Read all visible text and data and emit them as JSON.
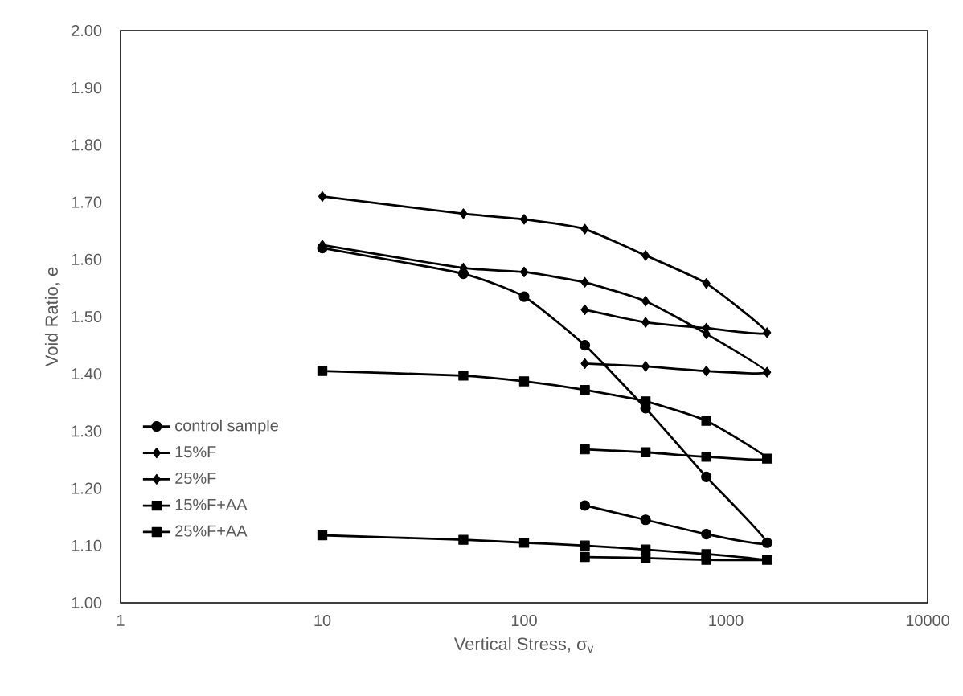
{
  "chart_data": {
    "type": "line",
    "xlabel": "Vertical Stress, σ$_{v}$",
    "ylabel": "Void Ratio, e",
    "log": "x",
    "xlim": [
      1,
      10000
    ],
    "xticks": [
      1,
      10,
      100,
      1000,
      10000
    ],
    "ylim": [
      1,
      2
    ],
    "yticks": [
      {
        "value": 1,
        "label": "1.00"
      },
      {
        "value": 1.1,
        "label": "1.10"
      },
      {
        "value": 1.2,
        "label": "1.20"
      },
      {
        "value": 1.3,
        "label": "1.30"
      },
      {
        "value": 1.4,
        "label": "1.40"
      },
      {
        "value": 1.5,
        "label": "1.50"
      },
      {
        "value": 1.6,
        "label": "1.60"
      },
      {
        "value": 1.7,
        "label": "1.70"
      },
      {
        "value": 1.8,
        "label": "1.80"
      },
      {
        "value": 1.9,
        "label": "1.90"
      },
      {
        "value": 2,
        "label": "2.00"
      }
    ],
    "grid": false,
    "legend": "left",
    "line_style": "solid",
    "series": [
      {
        "name": "control sample",
        "color": "#000000",
        "marker": "circle",
        "x": [
          10,
          50,
          100,
          200,
          400,
          800,
          1600,
          800,
          400,
          200
        ],
        "values": [
          1.62,
          1.575,
          1.535,
          1.45,
          1.34,
          1.22,
          1.105,
          1.12,
          1.145,
          1.17
        ]
      },
      {
        "name": "15%F",
        "color": "#000000",
        "marker": "diamond",
        "x": [
          10,
          50,
          100,
          200,
          400,
          800,
          1600,
          800,
          400,
          200
        ],
        "values": [
          1.71,
          1.68,
          1.67,
          1.653,
          1.607,
          1.558,
          1.472,
          1.48,
          1.49,
          1.512
        ]
      },
      {
        "name": "25%F",
        "color": "#000000",
        "marker": "diamond",
        "x": [
          10,
          50,
          100,
          200,
          400,
          800,
          1600,
          800,
          400,
          200
        ],
        "values": [
          1.625,
          1.585,
          1.578,
          1.56,
          1.527,
          1.47,
          1.403,
          1.405,
          1.413,
          1.418
        ]
      },
      {
        "name": "15%F+AA",
        "color": "#000000",
        "marker": "square",
        "x": [
          10,
          50,
          100,
          200,
          400,
          800,
          1600,
          800,
          400,
          200
        ],
        "values": [
          1.405,
          1.397,
          1.387,
          1.372,
          1.352,
          1.318,
          1.252,
          1.255,
          1.263,
          1.268
        ]
      },
      {
        "name": "25%F+AA",
        "color": "#000000",
        "marker": "square",
        "x": [
          10,
          50,
          100,
          200,
          400,
          800,
          1600,
          800,
          400,
          200
        ],
        "values": [
          1.118,
          1.11,
          1.105,
          1.1,
          1.093,
          1.085,
          1.075,
          1.075,
          1.078,
          1.08
        ]
      }
    ]
  }
}
